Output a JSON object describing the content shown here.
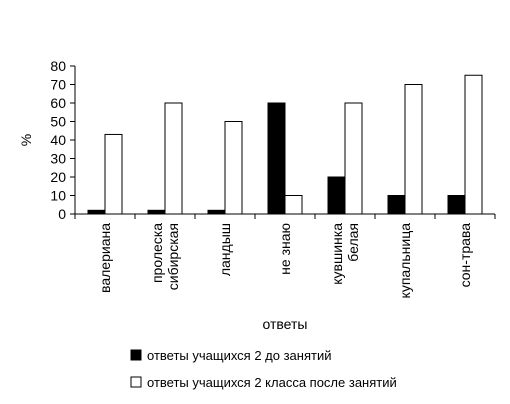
{
  "chart_data": {
    "type": "bar",
    "title": "",
    "xlabel": "ответы",
    "ylabel": "%",
    "ylim": [
      0,
      80
    ],
    "yticks": [
      0,
      10,
      20,
      30,
      40,
      50,
      60,
      70,
      80
    ],
    "grid": false,
    "legend_position": "bottom",
    "categories": [
      [
        "валериана"
      ],
      [
        "пролеска",
        "сибирская"
      ],
      [
        "ландыш"
      ],
      [
        "не знаю"
      ],
      [
        "кувшинка",
        "белая"
      ],
      [
        "купальница"
      ],
      [
        "сон-трава"
      ]
    ],
    "series": [
      {
        "name": "ответы учащихся 2 до занятий",
        "color": "#000000",
        "values": [
          2,
          2,
          2,
          60,
          20,
          10,
          10
        ]
      },
      {
        "name": "ответы учащихся 2 класса после занятий",
        "color": "#ffffff",
        "values": [
          43,
          60,
          50,
          10,
          60,
          70,
          75
        ]
      }
    ]
  }
}
